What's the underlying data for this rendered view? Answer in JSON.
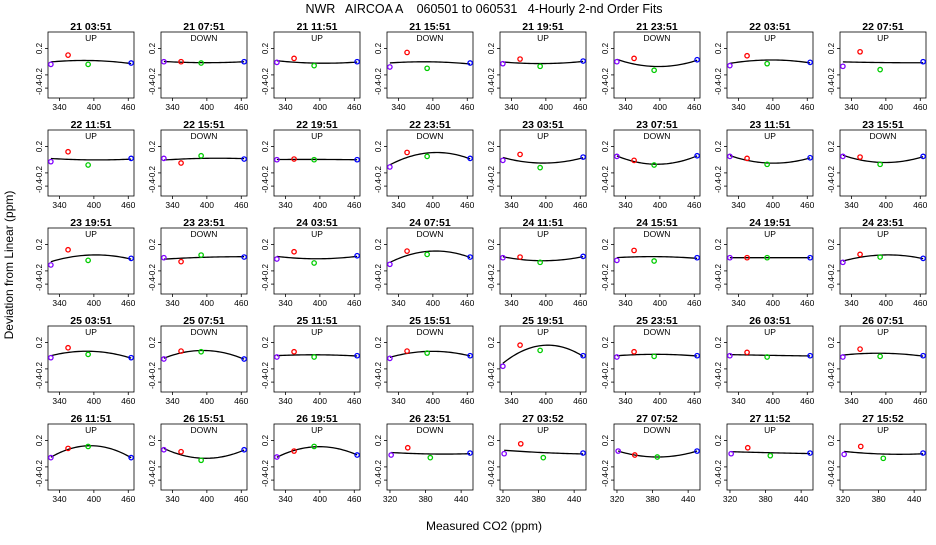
{
  "title": "NWR   AIRCOA A    060501 to 060531   4-Hourly 2-nd Order Fits",
  "xlabel": "Measured CO2 (ppm)",
  "ylabel": "Deviation from Linear (ppm)",
  "colors": {
    "low": "#8000ff",
    "mid_low": "#ff0000",
    "mid_high": "#00cc00",
    "high": "#0000ff",
    "fit": "#000000"
  },
  "chart_data": {
    "type": "scatter",
    "ylim": [
      -0.55,
      0.45
    ],
    "y_ticks": [
      "0.2",
      "-0.2",
      "-0.4"
    ],
    "y_tick_values": [
      0.2,
      -0.2,
      -0.4
    ],
    "x_scale_a": {
      "xlim": [
        320,
        470
      ],
      "ticks": [
        "340",
        "400",
        "460"
      ],
      "tick_values": [
        340,
        400,
        460
      ],
      "standards": [
        325,
        355,
        390,
        465
      ]
    },
    "x_scale_b": {
      "xlim": [
        315,
        460
      ],
      "ticks": [
        "320",
        "380",
        "440"
      ],
      "tick_values": [
        320,
        380,
        440
      ],
      "standards": [
        322,
        350,
        388,
        455
      ]
    },
    "panels": [
      {
        "t": "21 03:51",
        "d": "UP",
        "s": "a",
        "y": [
          -0.04,
          0.1,
          -0.04,
          -0.02
        ]
      },
      {
        "t": "21 07:51",
        "d": "DOWN",
        "s": "a",
        "y": [
          0.0,
          0.0,
          -0.02,
          0.0
        ]
      },
      {
        "t": "21 11:51",
        "d": "UP",
        "s": "a",
        "y": [
          -0.01,
          0.05,
          -0.06,
          0.0
        ]
      },
      {
        "t": "21 15:51",
        "d": "DOWN",
        "s": "a",
        "y": [
          -0.08,
          0.14,
          -0.1,
          -0.02
        ]
      },
      {
        "t": "21 19:51",
        "d": "UP",
        "s": "a",
        "y": [
          -0.03,
          0.04,
          -0.07,
          0.01
        ]
      },
      {
        "t": "21 23:51",
        "d": "DOWN",
        "s": "a",
        "y": [
          0.0,
          0.05,
          -0.13,
          0.03
        ]
      },
      {
        "t": "22 03:51",
        "d": "UP",
        "s": "a",
        "y": [
          -0.06,
          0.09,
          -0.03,
          -0.01
        ]
      },
      {
        "t": "22 07:51",
        "d": "UP",
        "s": "a",
        "y": [
          -0.07,
          0.15,
          -0.12,
          0.0
        ]
      },
      {
        "t": "22 11:51",
        "d": "UP",
        "s": "a",
        "y": [
          -0.03,
          0.12,
          -0.08,
          0.02
        ]
      },
      {
        "t": "22 15:51",
        "d": "DOWN",
        "s": "a",
        "y": [
          0.02,
          -0.05,
          0.06,
          0.01
        ]
      },
      {
        "t": "22 19:51",
        "d": "UP",
        "s": "a",
        "y": [
          0.0,
          0.01,
          0.0,
          0.0
        ]
      },
      {
        "t": "22 23:51",
        "d": "DOWN",
        "s": "a",
        "y": [
          -0.11,
          0.11,
          0.05,
          0.02
        ]
      },
      {
        "t": "23 03:51",
        "d": "UP",
        "s": "a",
        "y": [
          -0.01,
          0.08,
          -0.12,
          0.04
        ]
      },
      {
        "t": "23 07:51",
        "d": "DOWN",
        "s": "a",
        "y": [
          0.05,
          -0.01,
          -0.08,
          0.06
        ]
      },
      {
        "t": "23 11:51",
        "d": "UP",
        "s": "a",
        "y": [
          0.05,
          0.02,
          -0.07,
          0.03
        ]
      },
      {
        "t": "23 15:51",
        "d": "DOWN",
        "s": "a",
        "y": [
          0.05,
          0.04,
          -0.07,
          0.05
        ]
      },
      {
        "t": "23 19:51",
        "d": "UP",
        "s": "a",
        "y": [
          -0.11,
          0.12,
          -0.04,
          -0.01
        ]
      },
      {
        "t": "23 23:51",
        "d": "DOWN",
        "s": "a",
        "y": [
          0.0,
          -0.06,
          0.04,
          0.01
        ]
      },
      {
        "t": "24 03:51",
        "d": "UP",
        "s": "a",
        "y": [
          -0.02,
          0.09,
          -0.08,
          0.03
        ]
      },
      {
        "t": "24 07:51",
        "d": "DOWN",
        "s": "a",
        "y": [
          -0.1,
          0.1,
          0.05,
          0.01
        ]
      },
      {
        "t": "24 11:51",
        "d": "UP",
        "s": "a",
        "y": [
          0.0,
          0.01,
          -0.07,
          0.02
        ]
      },
      {
        "t": "24 15:51",
        "d": "DOWN",
        "s": "a",
        "y": [
          -0.04,
          0.11,
          -0.05,
          0.0
        ]
      },
      {
        "t": "24 19:51",
        "d": "UP",
        "s": "a",
        "y": [
          0.0,
          0.0,
          0.0,
          0.0
        ]
      },
      {
        "t": "24 23:51",
        "d": "UP",
        "s": "a",
        "y": [
          -0.07,
          0.05,
          0.01,
          -0.01
        ]
      },
      {
        "t": "25 03:51",
        "d": "UP",
        "s": "a",
        "y": [
          -0.03,
          0.12,
          0.02,
          -0.03
        ]
      },
      {
        "t": "25 07:51",
        "d": "DOWN",
        "s": "a",
        "y": [
          -0.05,
          0.07,
          0.06,
          -0.05
        ]
      },
      {
        "t": "25 11:51",
        "d": "UP",
        "s": "a",
        "y": [
          -0.02,
          0.06,
          -0.02,
          0.0
        ]
      },
      {
        "t": "25 15:51",
        "d": "DOWN",
        "s": "a",
        "y": [
          -0.04,
          0.07,
          0.04,
          0.0
        ]
      },
      {
        "t": "25 19:51",
        "d": "UP",
        "s": "a",
        "y": [
          -0.16,
          0.16,
          0.08,
          0.0
        ]
      },
      {
        "t": "25 23:51",
        "d": "DOWN",
        "s": "a",
        "y": [
          -0.02,
          0.06,
          -0.01,
          0.0
        ]
      },
      {
        "t": "26 03:51",
        "d": "UP",
        "s": "a",
        "y": [
          0.0,
          0.05,
          -0.02,
          0.0
        ]
      },
      {
        "t": "26 07:51",
        "d": "UP",
        "s": "a",
        "y": [
          -0.02,
          0.1,
          -0.01,
          0.0
        ]
      },
      {
        "t": "26 11:51",
        "d": "UP",
        "s": "a",
        "y": [
          -0.06,
          0.08,
          0.11,
          -0.06
        ]
      },
      {
        "t": "26 15:51",
        "d": "DOWN",
        "s": "a",
        "y": [
          0.06,
          0.03,
          -0.1,
          0.06
        ]
      },
      {
        "t": "26 19:51",
        "d": "UP",
        "s": "a",
        "y": [
          -0.05,
          0.04,
          0.11,
          -0.02
        ]
      },
      {
        "t": "26 23:51",
        "d": "DOWN",
        "s": "b",
        "y": [
          -0.02,
          0.09,
          -0.06,
          0.01
        ]
      },
      {
        "t": "27 03:52",
        "d": "UP",
        "s": "b",
        "y": [
          0.0,
          0.15,
          -0.06,
          0.01
        ]
      },
      {
        "t": "27 07:52",
        "d": "DOWN",
        "s": "b",
        "y": [
          0.04,
          -0.02,
          -0.05,
          0.04
        ]
      },
      {
        "t": "27 11:52",
        "d": "UP",
        "s": "b",
        "y": [
          0.0,
          0.09,
          -0.03,
          0.01
        ]
      },
      {
        "t": "27 15:52",
        "d": "UP",
        "s": "b",
        "y": [
          -0.01,
          0.11,
          -0.07,
          0.01
        ]
      }
    ]
  }
}
